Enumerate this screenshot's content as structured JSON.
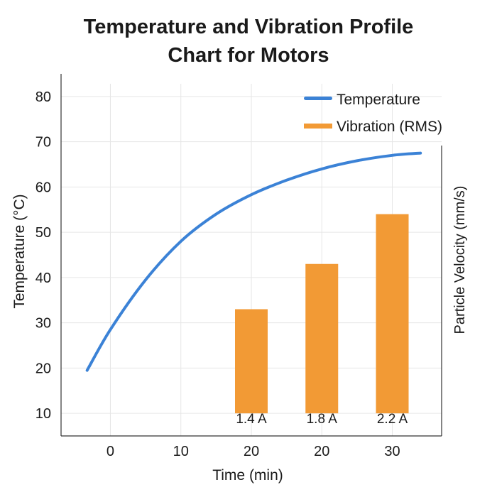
{
  "chart_data": {
    "type": "line+bar",
    "title_lines": [
      "Temperature and Vibration Profile",
      "Chart for Motors"
    ],
    "xlabel": "Time (min)",
    "ylabel": "Temperature (°C)",
    "y2label": "Particle Velocity (mm/s)",
    "y_ticks": [
      10,
      20,
      30,
      40,
      50,
      60,
      70,
      80
    ],
    "ylim": [
      5,
      85
    ],
    "x_tick_labels": [
      "0",
      "10",
      "20",
      "20",
      "30"
    ],
    "x_tick_index": [
      0,
      1,
      2,
      3,
      4
    ],
    "xlim_index": [
      -0.7,
      4.7
    ],
    "grid": true,
    "legend": [
      {
        "label": "Temperature",
        "color": "#3b82d6",
        "kind": "line"
      },
      {
        "label": "Vibration (RMS)",
        "color": "#f29a35",
        "kind": "bar"
      }
    ],
    "series": [
      {
        "name": "Temperature",
        "type": "line",
        "color": "#3b82d6",
        "x_index": [
          -0.33,
          0.0,
          0.5,
          1.0,
          1.5,
          2.0,
          2.5,
          3.0,
          3.5,
          4.0,
          4.4
        ],
        "values": [
          19.5,
          28.5,
          39.5,
          48.0,
          54.0,
          58.3,
          61.5,
          64.0,
          65.8,
          67.0,
          67.5
        ]
      },
      {
        "name": "Vibration (RMS)",
        "type": "bar",
        "color": "#f29a35",
        "x_index": [
          2,
          3,
          4
        ],
        "base": 10,
        "values": [
          33,
          43,
          54
        ],
        "bar_labels": [
          "1.4 A",
          "1.8 A",
          "2.2 A"
        ]
      }
    ]
  }
}
